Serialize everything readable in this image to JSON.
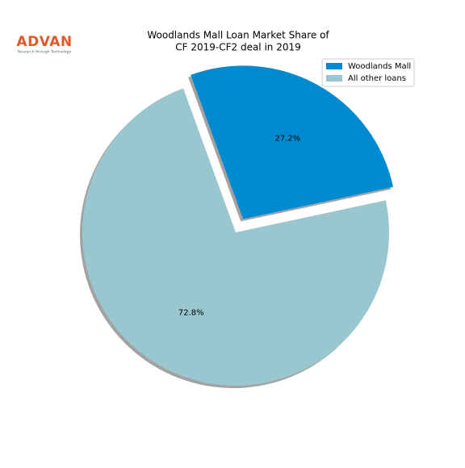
{
  "logo": {
    "name": "ADVAN",
    "tagline": "Research through Technology"
  },
  "chart_data": {
    "type": "pie",
    "title": [
      "Woodlands Mall Loan Market Share of",
      "CF 2019-CF2 deal in 2019"
    ],
    "categories": [
      "Woodlands Mall",
      "All other loans"
    ],
    "values": [
      27.2,
      72.8
    ],
    "value_labels": [
      "27.2%",
      "72.8%"
    ],
    "colors": [
      "#008bd0",
      "#9ac6cf"
    ],
    "legend": "upper right"
  }
}
